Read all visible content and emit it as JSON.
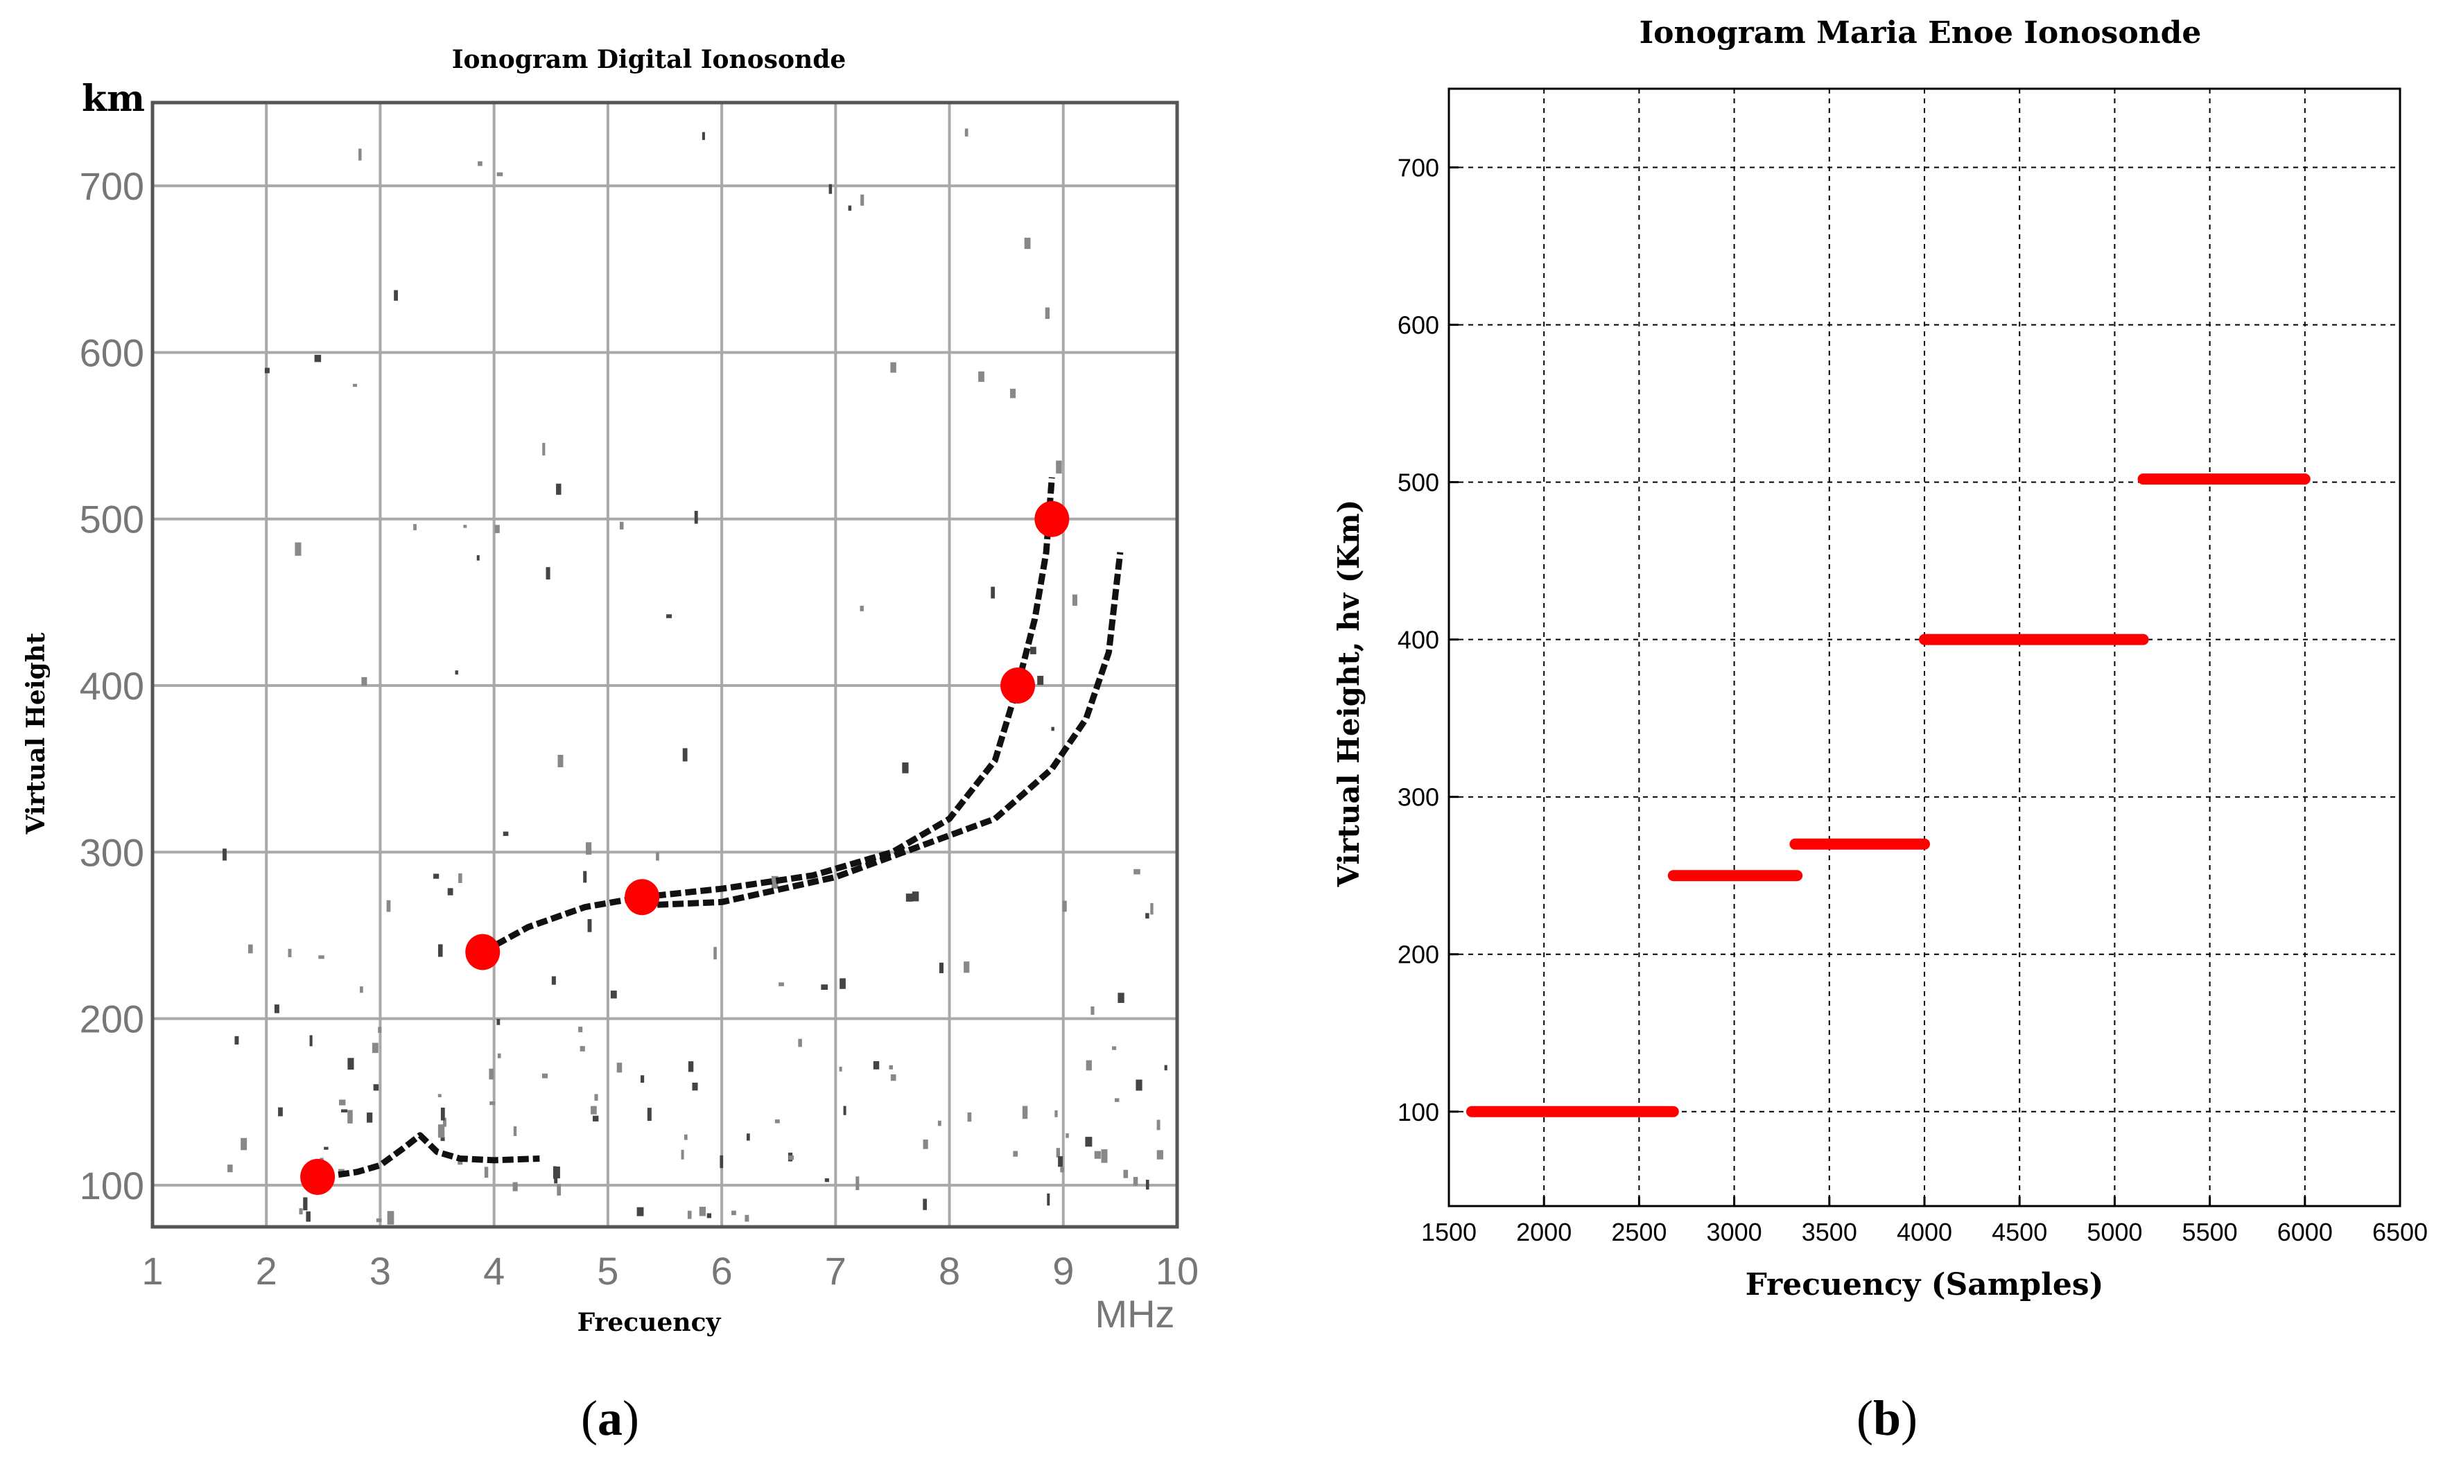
{
  "figure_captions": {
    "a_open": "(",
    "a_letter": "a",
    "a_close": ")",
    "b_open": "(",
    "b_letter": "b",
    "b_close": ")"
  },
  "colors": {
    "grid_gray": "#a9a9a9",
    "trace_black": "#111111",
    "marker_red": "#ff0000",
    "background": "#ffffff",
    "axis_black": "#000000"
  },
  "chart_data": [
    {
      "type": "scatter",
      "panel": "a",
      "title": "Ionogram Digital Ionosonde",
      "xlabel": "Frecuency",
      "ylabel": "Virtual Height",
      "x_unit": "MHz",
      "y_unit": "km",
      "xlim": [
        1,
        10
      ],
      "ylim": [
        75,
        750
      ],
      "xticks": [
        1,
        2,
        3,
        4,
        5,
        6,
        7,
        8,
        9,
        10
      ],
      "yticks": [
        100,
        200,
        300,
        400,
        500,
        600,
        700
      ],
      "grid": true,
      "series": [
        {
          "name": "selected points",
          "x": [
            2.45,
            3.9,
            5.3,
            8.6,
            8.9
          ],
          "y": [
            105,
            240,
            273,
            400,
            500
          ]
        },
        {
          "name": "trace lower",
          "x": [
            2.5,
            2.8,
            3.0,
            3.2,
            3.35,
            3.5,
            3.7,
            4.0,
            4.4
          ],
          "y": [
            105,
            108,
            112,
            122,
            130,
            120,
            116,
            115,
            116
          ]
        },
        {
          "name": "trace F ordinary",
          "x": [
            3.9,
            4.3,
            4.8,
            5.3,
            6.0,
            6.8,
            7.5,
            8.0,
            8.4,
            8.6,
            8.75,
            8.85,
            8.9
          ],
          "y": [
            240,
            255,
            267,
            273,
            278,
            286,
            300,
            320,
            355,
            400,
            440,
            480,
            525
          ]
        },
        {
          "name": "trace F extraordinary",
          "x": [
            5.3,
            6.0,
            7.0,
            7.8,
            8.4,
            8.9,
            9.2,
            9.4,
            9.5
          ],
          "y": [
            268,
            270,
            285,
            305,
            320,
            350,
            380,
            420,
            480
          ]
        }
      ]
    },
    {
      "type": "scatter",
      "panel": "b",
      "title": "Ionogram Maria Enoe Ionosonde",
      "xlabel": "Frecuency (Samples)",
      "ylabel": "Virtual Height, hv (Km)",
      "xlim": [
        1500,
        6500
      ],
      "ylim": [
        40,
        750
      ],
      "xticks": [
        1500,
        2000,
        2500,
        3000,
        3500,
        4000,
        4500,
        5000,
        5500,
        6000,
        6500
      ],
      "yticks": [
        100,
        200,
        300,
        400,
        500,
        600,
        700
      ],
      "grid": true,
      "series": [
        {
          "name": "segment 1",
          "x": [
            1620,
            2680
          ],
          "y": [
            100,
            100
          ]
        },
        {
          "name": "segment 2",
          "x": [
            2680,
            3330
          ],
          "y": [
            250,
            250
          ]
        },
        {
          "name": "segment 3",
          "x": [
            3320,
            4000
          ],
          "y": [
            270,
            270
          ]
        },
        {
          "name": "segment 4",
          "x": [
            4000,
            5150
          ],
          "y": [
            400,
            400
          ]
        },
        {
          "name": "segment 5",
          "x": [
            5150,
            6000
          ],
          "y": [
            502,
            502
          ]
        }
      ]
    }
  ]
}
